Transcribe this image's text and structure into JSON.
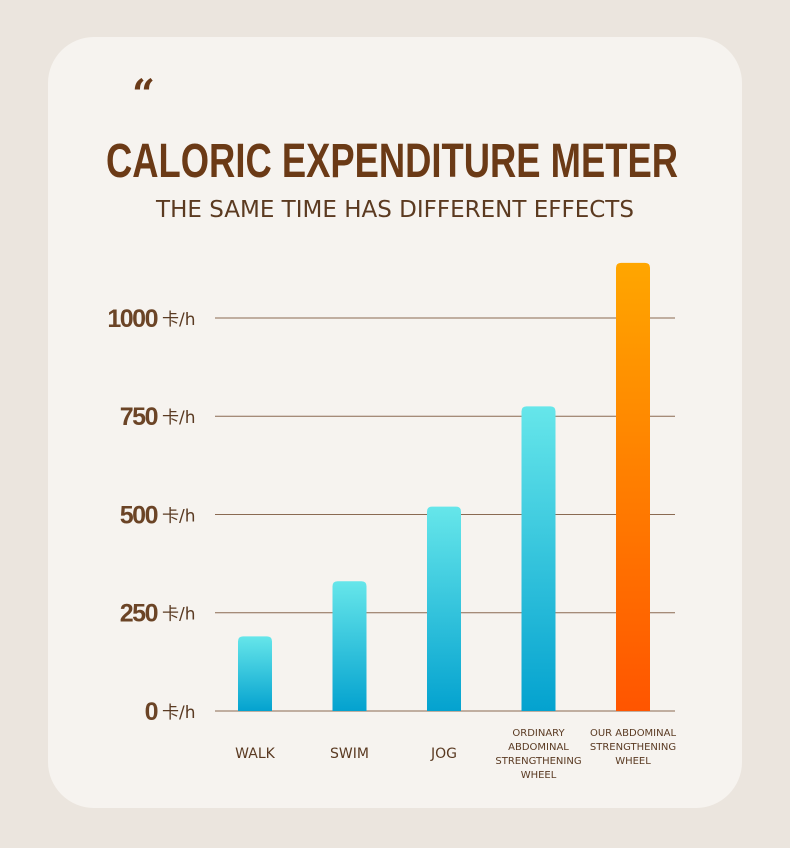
{
  "chart_data": {
    "type": "bar",
    "quote_mark": "“",
    "title": "CALORIC EXPENDITURE METER",
    "subtitle": "THE SAME TIME HAS DIFFERENT EFFECTS",
    "categories": [
      "WALK",
      "SWIM",
      "JOG",
      "ORDINARY ABDOMINAL STRENGTHENING WHEEL",
      "OUR ABDOMINAL STRENGTHENING WHEEL"
    ],
    "values": [
      190,
      330,
      520,
      775,
      1140
    ],
    "colors": [
      [
        "#66e6ea",
        "#04a2cf"
      ],
      [
        "#66e6ea",
        "#04a2cf"
      ],
      [
        "#66e6ea",
        "#04a2cf"
      ],
      [
        "#66e6ea",
        "#04a2cf"
      ],
      [
        "#ffa600",
        "#ff5500"
      ]
    ],
    "ylim": [
      0,
      1150
    ],
    "yticks": [
      0,
      250,
      500,
      750,
      1000
    ],
    "ytick_unit": "卡/h",
    "grid": true
  }
}
